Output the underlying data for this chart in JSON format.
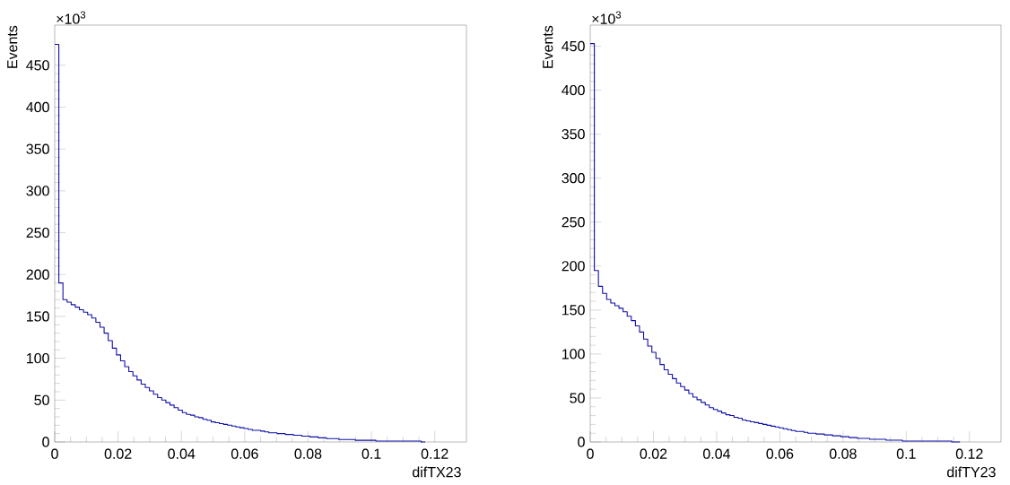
{
  "chart_data": [
    {
      "type": "histogram",
      "xlabel": "difTX23",
      "ylabel": "Events",
      "annotations": [
        "×10$^{3}$"
      ],
      "color": "#1010a8",
      "bins": [
        0,
        0.0013,
        0.0026,
        0.0039,
        0.0052,
        0.0065,
        0.0078,
        0.0091,
        0.0104,
        0.0117,
        0.013,
        0.0143,
        0.0156,
        0.0169,
        0.0182,
        0.0195,
        0.0208,
        0.0221,
        0.0234,
        0.0247,
        0.026,
        0.0273,
        0.0286,
        0.0299,
        0.0312,
        0.0325,
        0.0338,
        0.0351,
        0.0364,
        0.0377,
        0.039,
        0.0403,
        0.0416,
        0.0429,
        0.0442,
        0.0455,
        0.0468,
        0.0481,
        0.0494,
        0.0507,
        0.052,
        0.0533,
        0.0546,
        0.0559,
        0.0572,
        0.0585,
        0.0598,
        0.0611,
        0.0624,
        0.0637,
        0.065,
        0.0663,
        0.0676,
        0.0689,
        0.0702,
        0.0715,
        0.0728,
        0.0741,
        0.0754,
        0.0767,
        0.078,
        0.0793,
        0.0806,
        0.0819,
        0.0832,
        0.0845,
        0.0858,
        0.0871,
        0.0884,
        0.0897,
        0.091,
        0.0923,
        0.0936,
        0.0949,
        0.0962,
        0.0975,
        0.0988,
        0.1001,
        0.1014,
        0.1027,
        0.104,
        0.1053,
        0.1066,
        0.1079,
        0.1092,
        0.1105,
        0.1118,
        0.1131,
        0.1144,
        0.1157,
        0.117
      ],
      "values": [
        475,
        190,
        170,
        167,
        164,
        161,
        158,
        155,
        152,
        148,
        143,
        137,
        130,
        121,
        112,
        104,
        97,
        90,
        84,
        79,
        74,
        69,
        65,
        61,
        57,
        53,
        50,
        47,
        44,
        41,
        38,
        35,
        33,
        32,
        30,
        29,
        27,
        26,
        24,
        23,
        22,
        21,
        20,
        19,
        18,
        17,
        16,
        15,
        14,
        14,
        13,
        12,
        11,
        11,
        10,
        10,
        9,
        9,
        8,
        8,
        7,
        7,
        6,
        6,
        5,
        5,
        4,
        4,
        4,
        3,
        3,
        3,
        3,
        2,
        2,
        2,
        2,
        2,
        1,
        1,
        1,
        1,
        1,
        1,
        1,
        1,
        1,
        1,
        1,
        0
      ],
      "xlim": [
        0,
        0.13
      ],
      "ylim": [
        0,
        498
      ],
      "xticks": [
        0,
        0.02,
        0.04,
        0.06,
        0.08,
        0.1,
        0.12
      ],
      "yticks": [
        0,
        50,
        100,
        150,
        200,
        250,
        300,
        350,
        400,
        450
      ]
    },
    {
      "type": "histogram",
      "xlabel": "difTY23",
      "ylabel": "Events",
      "annotations": [
        "×10$^{3}$"
      ],
      "color": "#1010a8",
      "bins": [
        0,
        0.0013,
        0.0026,
        0.0039,
        0.0052,
        0.0065,
        0.0078,
        0.0091,
        0.0104,
        0.0117,
        0.013,
        0.0143,
        0.0156,
        0.0169,
        0.0182,
        0.0195,
        0.0208,
        0.0221,
        0.0234,
        0.0247,
        0.026,
        0.0273,
        0.0286,
        0.0299,
        0.0312,
        0.0325,
        0.0338,
        0.0351,
        0.0364,
        0.0377,
        0.039,
        0.0403,
        0.0416,
        0.0429,
        0.0442,
        0.0455,
        0.0468,
        0.0481,
        0.0494,
        0.0507,
        0.052,
        0.0533,
        0.0546,
        0.0559,
        0.0572,
        0.0585,
        0.0598,
        0.0611,
        0.0624,
        0.0637,
        0.065,
        0.0663,
        0.0676,
        0.0689,
        0.0702,
        0.0715,
        0.0728,
        0.0741,
        0.0754,
        0.0767,
        0.078,
        0.0793,
        0.0806,
        0.0819,
        0.0832,
        0.0845,
        0.0858,
        0.0871,
        0.0884,
        0.0897,
        0.091,
        0.0923,
        0.0936,
        0.0949,
        0.0962,
        0.0975,
        0.0988,
        0.1001,
        0.1014,
        0.1027,
        0.104,
        0.1053,
        0.1066,
        0.1079,
        0.1092,
        0.1105,
        0.1118,
        0.1131,
        0.1144,
        0.1157,
        0.117
      ],
      "values": [
        453,
        195,
        177,
        169,
        162,
        158,
        155,
        152,
        148,
        143,
        138,
        132,
        125,
        117,
        109,
        102,
        95,
        88,
        82,
        77,
        72,
        67,
        63,
        59,
        55,
        51,
        48,
        45,
        42,
        39,
        37,
        35,
        33,
        31,
        30,
        28,
        27,
        25,
        24,
        23,
        22,
        21,
        20,
        19,
        18,
        17,
        16,
        15,
        14,
        13,
        12,
        12,
        11,
        10,
        10,
        9,
        9,
        8,
        8,
        7,
        7,
        6,
        6,
        5,
        5,
        4,
        4,
        4,
        3,
        3,
        3,
        3,
        2,
        2,
        2,
        2,
        1,
        1,
        1,
        1,
        1,
        1,
        1,
        1,
        1,
        1,
        1,
        1,
        0,
        0
      ],
      "xlim": [
        0,
        0.13
      ],
      "ylim": [
        0,
        474
      ],
      "xticks": [
        0,
        0.02,
        0.04,
        0.06,
        0.08,
        0.1,
        0.12
      ],
      "yticks": [
        0,
        50,
        100,
        150,
        200,
        250,
        300,
        350,
        400,
        450
      ]
    }
  ]
}
